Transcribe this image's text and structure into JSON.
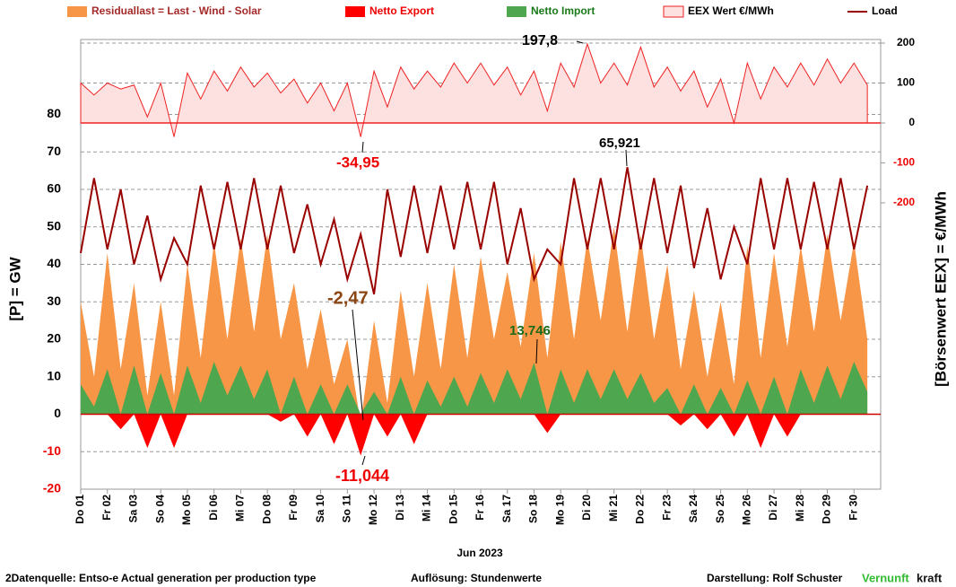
{
  "chart_data": {
    "type": "area",
    "x_label": "Jun 2023",
    "y_label": "[P]  = GW",
    "y2_label": "[Börsenwert  EEX]   = €/MWh",
    "x": [
      1,
      1.5,
      2,
      2.5,
      3,
      3.5,
      4,
      4.5,
      5,
      5.5,
      6,
      6.5,
      7,
      7.5,
      8,
      8.5,
      9,
      9.5,
      10,
      10.5,
      11,
      11.5,
      12,
      12.5,
      13,
      13.5,
      14,
      14.5,
      15,
      15.5,
      16,
      16.5,
      17,
      17.5,
      18,
      18.5,
      19,
      19.5,
      20,
      20.5,
      21,
      21.5,
      22,
      22.5,
      23,
      23.5,
      24,
      24.5,
      25,
      25.5,
      26,
      26.5,
      27,
      27.5,
      28,
      28.5,
      29,
      29.5,
      30,
      30.5
    ],
    "xlim": [
      1,
      31
    ],
    "xticks": [
      {
        "value": 1,
        "label": "Do 01"
      },
      {
        "value": 2,
        "label": "Fr 02"
      },
      {
        "value": 3,
        "label": "Sa 03"
      },
      {
        "value": 4,
        "label": "So 04"
      },
      {
        "value": 5,
        "label": "Mo 05"
      },
      {
        "value": 6,
        "label": "Di 06"
      },
      {
        "value": 7,
        "label": "Mi 07"
      },
      {
        "value": 8,
        "label": "Do 08"
      },
      {
        "value": 9,
        "label": "Fr 09"
      },
      {
        "value": 10,
        "label": "Sa 10"
      },
      {
        "value": 11,
        "label": "So 11"
      },
      {
        "value": 12,
        "label": "Mo 12"
      },
      {
        "value": 13,
        "label": "Di 13"
      },
      {
        "value": 14,
        "label": "Mi 14"
      },
      {
        "value": 15,
        "label": "Do 15"
      },
      {
        "value": 16,
        "label": "Fr 16"
      },
      {
        "value": 17,
        "label": "Sa 17"
      },
      {
        "value": 18,
        "label": "So 18"
      },
      {
        "value": 19,
        "label": "Mo 19"
      },
      {
        "value": 20,
        "label": "Di 20"
      },
      {
        "value": 21,
        "label": "Mi 21"
      },
      {
        "value": 22,
        "label": "Do 22"
      },
      {
        "value": 23,
        "label": "Fr 23"
      },
      {
        "value": 24,
        "label": "Sa 24"
      },
      {
        "value": 25,
        "label": "So 25"
      },
      {
        "value": 26,
        "label": "Mo 26"
      },
      {
        "value": 27,
        "label": "Di 27"
      },
      {
        "value": 28,
        "label": "Mi 28"
      },
      {
        "value": 29,
        "label": "Do 29"
      },
      {
        "value": 30,
        "label": "Fr 30"
      }
    ],
    "ylim": [
      -20,
      100
    ],
    "yticks": [
      -20,
      -10,
      0,
      10,
      20,
      30,
      40,
      50,
      60,
      70,
      80
    ],
    "y2lim": [
      -917,
      209
    ],
    "y2ticks": [
      -200,
      -100,
      0,
      100,
      200
    ],
    "grid": true,
    "series": [
      {
        "name": "EEX Wert €/MWh",
        "color": "#fde0e0",
        "line_color": "#ee2222",
        "axis": "y2",
        "values": [
          100,
          70,
          100,
          85,
          95,
          15,
          100,
          -35,
          125,
          60,
          130,
          80,
          140,
          90,
          125,
          75,
          110,
          50,
          100,
          30,
          100,
          -34.95,
          130,
          40,
          140,
          85,
          130,
          90,
          150,
          100,
          150,
          95,
          140,
          70,
          130,
          30,
          150,
          90,
          197.8,
          100,
          150,
          95,
          190,
          90,
          140,
          80,
          130,
          40,
          110,
          0,
          150,
          60,
          140,
          90,
          150,
          95,
          160,
          100,
          150,
          95
        ]
      },
      {
        "name": "Residuallast  =  Last - Wind - Solar",
        "color": "#f79646",
        "values": [
          30,
          10,
          43,
          12,
          35,
          5,
          30,
          5,
          40,
          15,
          46,
          20,
          47,
          22,
          48,
          20,
          35,
          12,
          28,
          8,
          20,
          -2.47,
          25,
          3,
          33,
          10,
          35,
          12,
          40,
          15,
          42,
          20,
          38,
          18,
          43,
          15,
          46,
          20,
          47,
          25,
          50,
          22,
          48,
          20,
          40,
          12,
          33,
          10,
          30,
          8,
          45,
          15,
          43,
          18,
          45,
          22,
          48,
          25,
          46,
          20
        ]
      },
      {
        "name": "Netto Export",
        "color": "#ff0000",
        "values": [
          0,
          0,
          0,
          -4,
          0,
          -9,
          0,
          -9,
          0,
          0,
          0,
          0,
          0,
          0,
          0,
          -2,
          0,
          -6,
          0,
          -8,
          0,
          -11.044,
          0,
          -6,
          0,
          -8,
          0,
          0,
          0,
          0,
          0,
          0,
          0,
          0,
          0,
          -5,
          0,
          0,
          0,
          0,
          0,
          0,
          0,
          0,
          0,
          -3,
          0,
          -4,
          0,
          -6,
          0,
          -9,
          0,
          -6,
          0,
          0,
          0,
          0,
          0,
          0
        ]
      },
      {
        "name": "Netto Import",
        "color": "#4ea74e",
        "values": [
          8,
          2,
          12,
          0,
          13,
          0,
          11,
          0,
          13,
          3,
          14,
          5,
          13,
          4,
          12,
          0,
          10,
          0,
          8,
          0,
          8,
          0,
          6,
          0,
          10,
          0,
          9,
          2,
          10,
          2,
          11,
          3,
          12,
          4,
          13.746,
          0,
          12,
          3,
          12,
          4,
          12,
          4,
          11,
          3,
          7,
          0,
          8,
          0,
          7,
          0,
          9,
          0,
          10,
          0,
          12,
          3,
          13,
          4,
          14,
          6
        ]
      },
      {
        "name": "Load",
        "color": "#990000",
        "type": "line",
        "values": [
          43,
          63,
          44,
          60,
          40,
          53,
          36,
          47,
          40,
          61,
          44,
          62,
          44,
          63,
          44,
          61,
          43,
          56,
          40,
          52,
          36,
          48,
          32,
          60,
          42,
          61,
          43,
          61,
          44,
          62,
          44,
          62,
          40,
          55,
          36,
          44,
          40,
          63,
          44,
          63,
          44,
          65.921,
          44,
          63,
          43,
          61,
          39,
          55,
          36,
          50,
          40,
          63,
          44,
          63,
          44,
          62,
          44,
          63,
          44,
          61
        ]
      }
    ],
    "annotations": [
      "197,8",
      "-34,95",
      "65,921",
      "-2,47",
      "13,746",
      "-11,044"
    ],
    "footer": [
      "2Datenquelle: Entso-e  Actual generation per production type",
      "Auflösung: Stundenwerte",
      "Darstellung:  Rolf Schuster"
    ],
    "brand": [
      "Vernunft",
      "kraft"
    ]
  }
}
